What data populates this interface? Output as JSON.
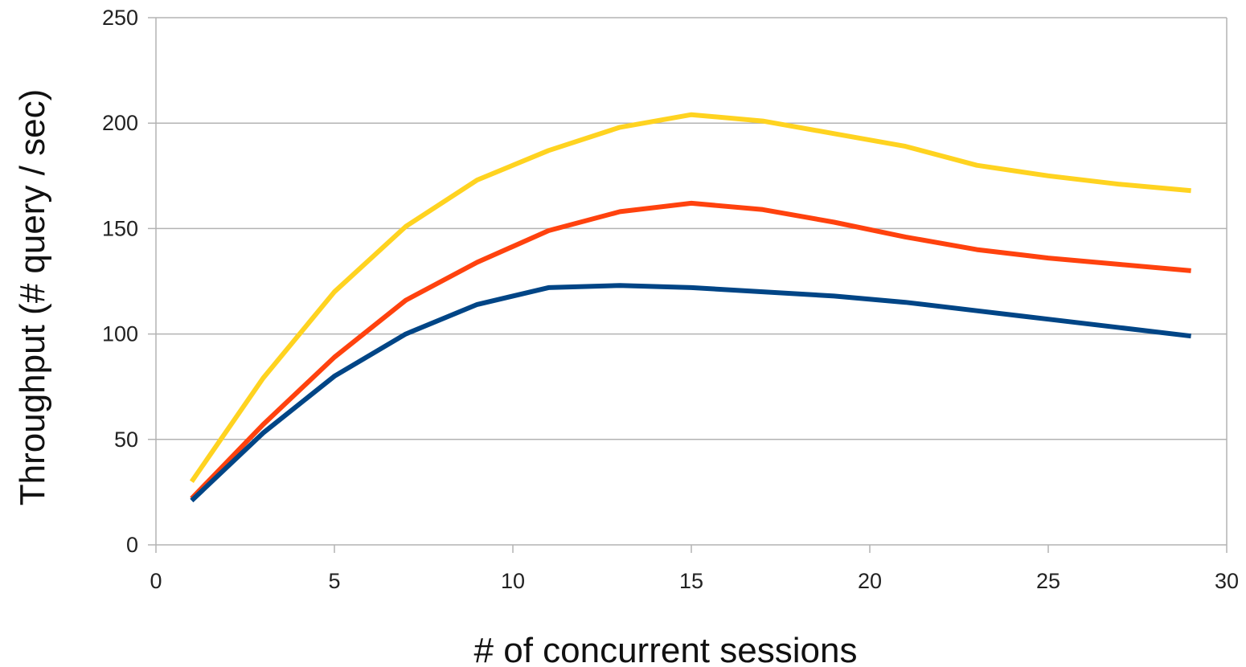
{
  "chart_data": {
    "type": "line",
    "title": "",
    "xlabel": "# of concurrent sessions",
    "ylabel": "Throughput (# query / sec)",
    "xlim": [
      0,
      30
    ],
    "ylim": [
      0,
      250
    ],
    "x_ticks": [
      0,
      5,
      10,
      15,
      20,
      25,
      30
    ],
    "y_ticks": [
      0,
      50,
      100,
      150,
      200,
      250
    ],
    "grid": "horizontal",
    "legend": "none",
    "x": [
      1,
      3,
      5,
      7,
      9,
      11,
      13,
      15,
      17,
      19,
      21,
      23,
      25,
      27,
      29
    ],
    "series": [
      {
        "color": "#ffd320",
        "values": [
          30,
          79,
          120,
          151,
          173,
          187,
          198,
          204,
          201,
          195,
          189,
          180,
          175,
          171,
          168
        ]
      },
      {
        "color": "#ff420e",
        "values": [
          22,
          57,
          89,
          116,
          134,
          149,
          158,
          162,
          159,
          153,
          146,
          140,
          136,
          133,
          130
        ]
      },
      {
        "color": "#004586",
        "values": [
          21,
          53,
          80,
          100,
          114,
          122,
          123,
          122,
          120,
          118,
          115,
          111,
          107,
          103,
          99
        ]
      }
    ]
  }
}
